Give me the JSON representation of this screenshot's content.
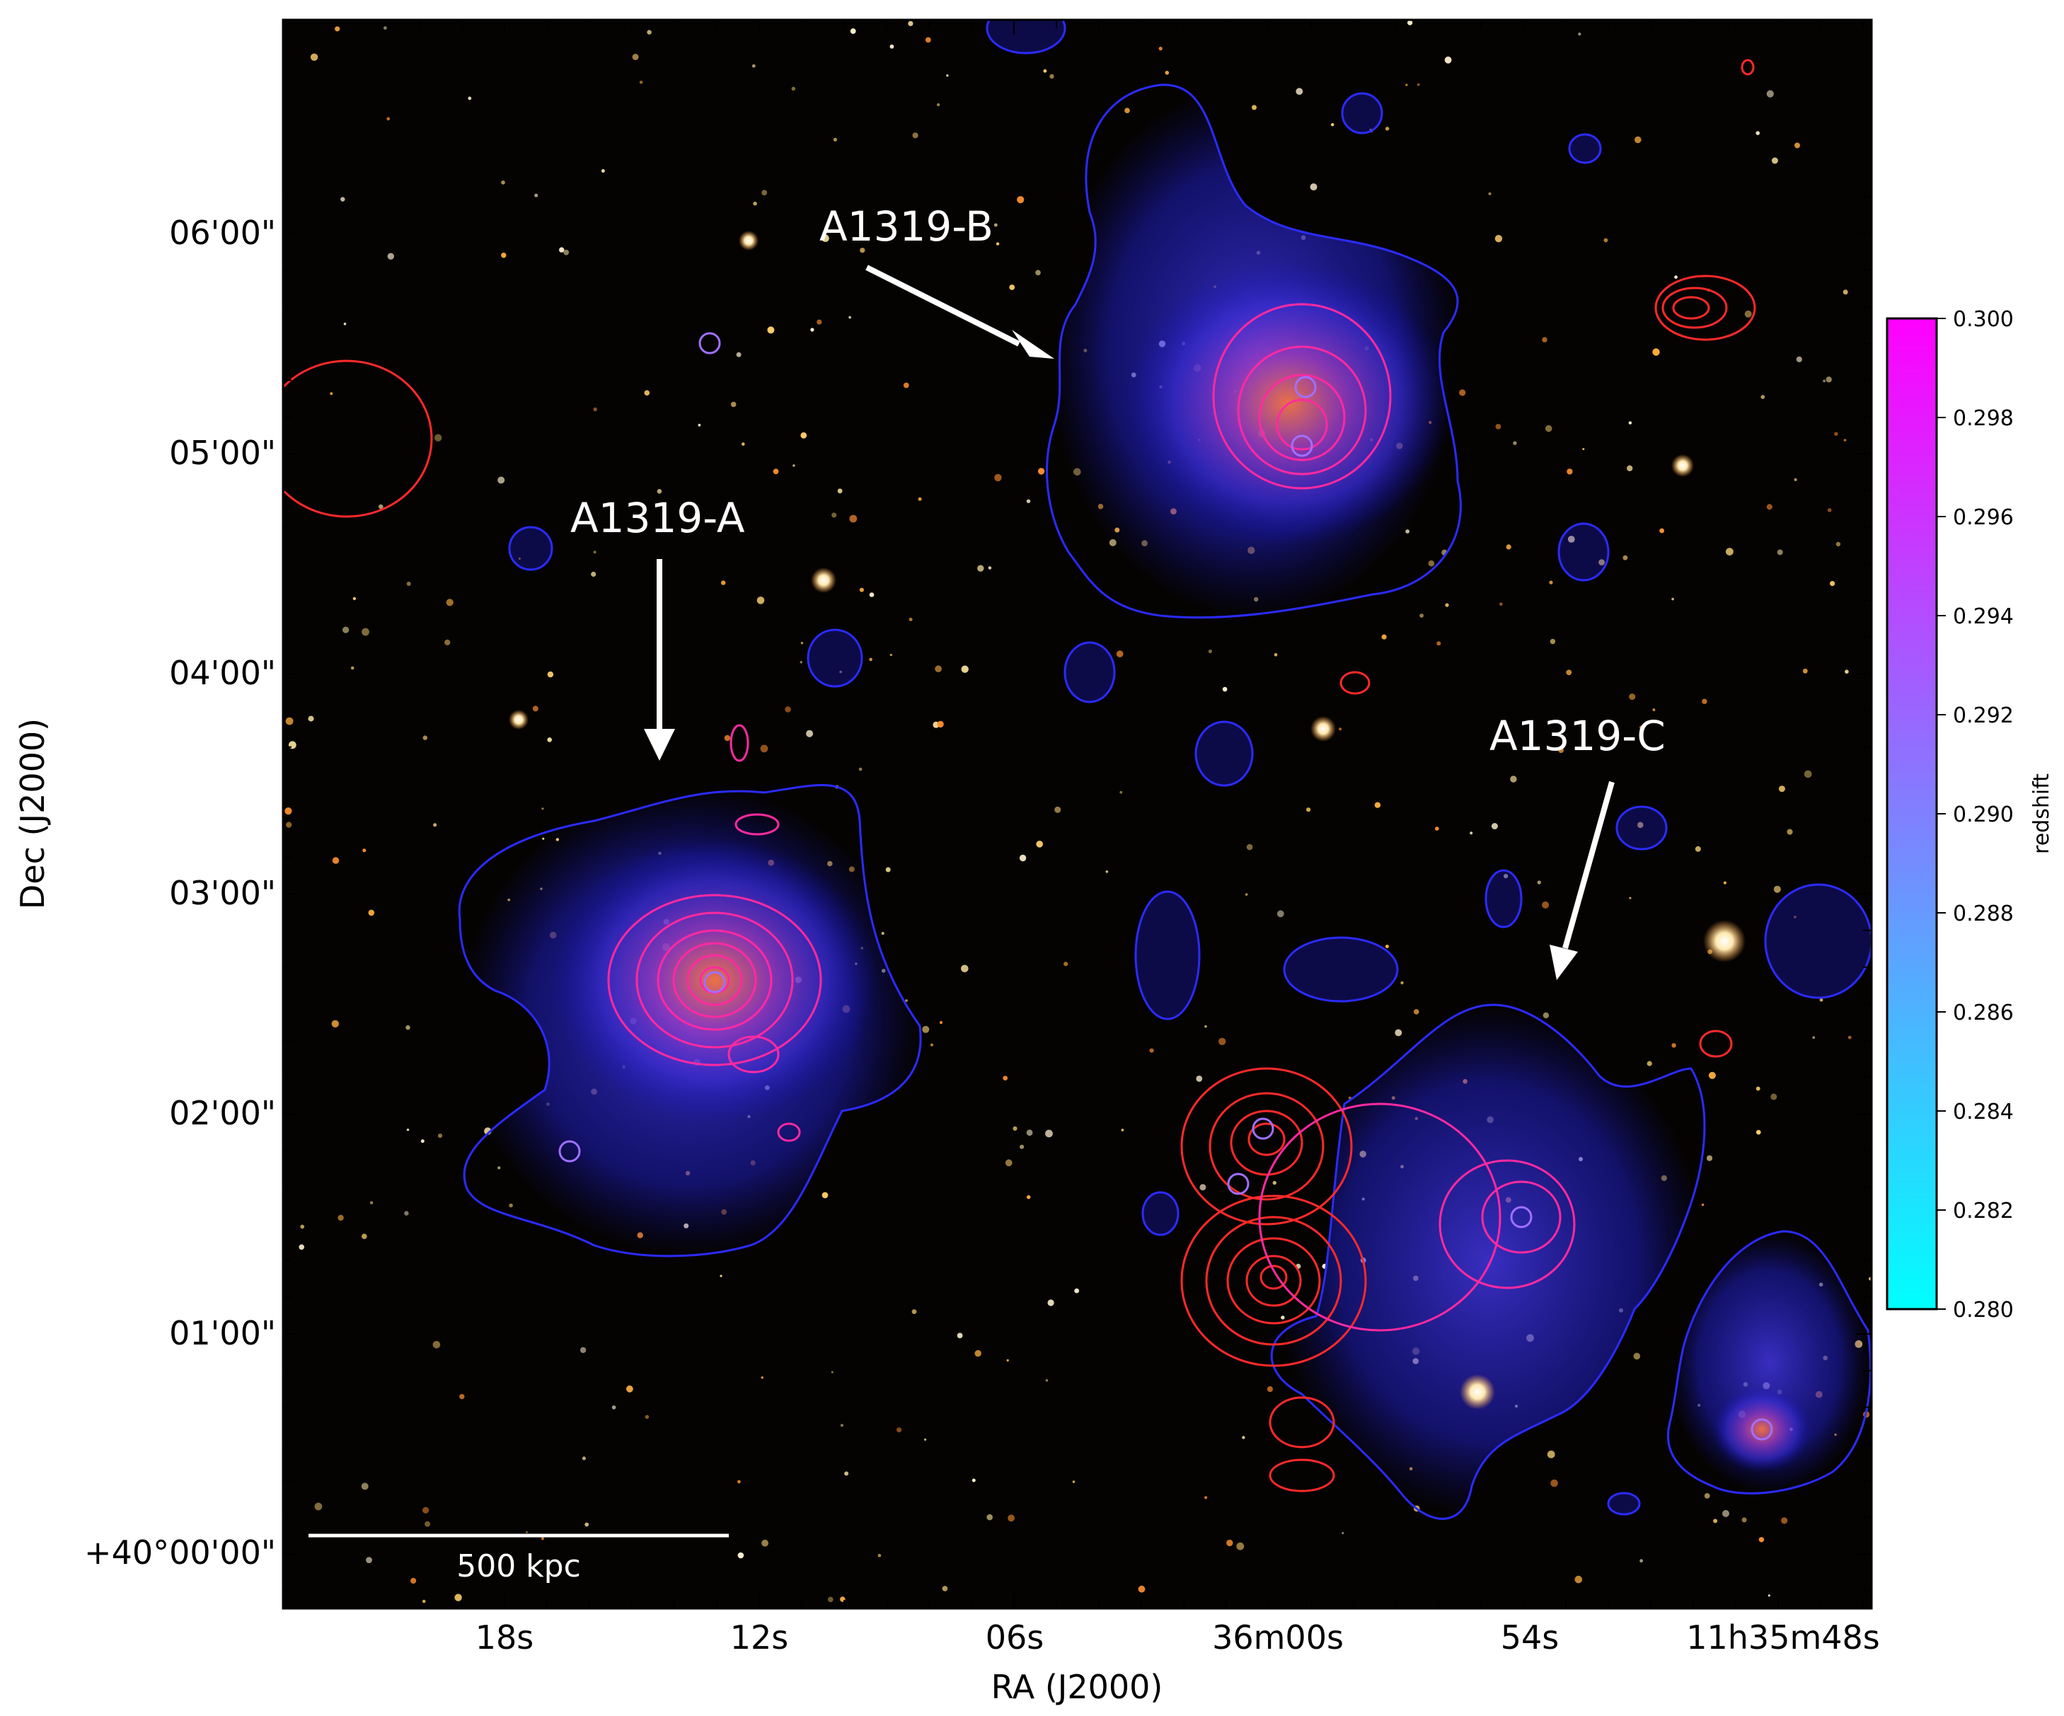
{
  "axes": {
    "xlabel": "RA (J2000)",
    "ylabel": "Dec (J2000)",
    "x_ticks": [
      "18s",
      "12s",
      "06s",
      "36m00s",
      "54s",
      "11h35m48s"
    ],
    "y_ticks": [
      "06'00\"",
      "05'00\"",
      "04'00\"",
      "03'00\"",
      "02'00\"",
      "01'00\"",
      "+40°00'00\""
    ]
  },
  "annotations": {
    "cluster_a": "A1319-A",
    "cluster_b": "A1319-B",
    "cluster_c": "A1319-C"
  },
  "scale_bar": {
    "label": "500 kpc"
  },
  "colorbar": {
    "label": "redshift",
    "ticks": [
      "0.300",
      "0.298",
      "0.296",
      "0.294",
      "0.292",
      "0.290",
      "0.288",
      "0.286",
      "0.284",
      "0.282",
      "0.280"
    ],
    "range": [
      0.28,
      0.3
    ],
    "colors": {
      "low": "#00ffff",
      "mid": "#8080ff",
      "high": "#ff00ff"
    }
  },
  "colors": {
    "background": "#050302",
    "blue_contour": "#2b2bff",
    "red_contour": "#ff2a2a",
    "pink_contour": "#ff2aa0",
    "arrow": "#ffffff"
  }
}
